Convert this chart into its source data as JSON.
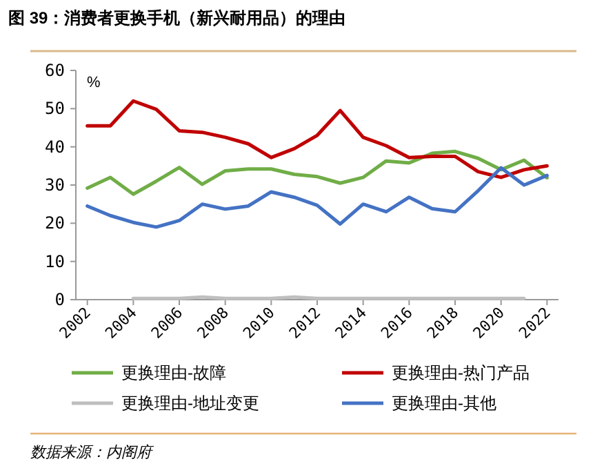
{
  "chart_data": {
    "type": "line",
    "title": "图 39：消费者更换手机（新兴耐用品）的理由",
    "ylabel": "%",
    "categories": [
      "2002",
      null,
      "2004",
      null,
      "2006",
      null,
      "2008",
      null,
      "2010",
      null,
      "2012",
      null,
      "2014",
      null,
      "2016",
      null,
      "2018",
      null,
      "2020",
      null,
      "2022"
    ],
    "series": [
      {
        "name": "更换理由-故障",
        "color": "#70ad47",
        "values": [
          29.2,
          32,
          27.6,
          31,
          34.6,
          30.2,
          33.7,
          34.2,
          34.2,
          32.8,
          32.2,
          30.5,
          32,
          36.3,
          35.8,
          38.3,
          38.8,
          37,
          34,
          36.5,
          31.9
        ]
      },
      {
        "name": "更换理由-热门产品",
        "color": "#c00000",
        "values": [
          45.5,
          45.5,
          52,
          49.8,
          44.2,
          43.8,
          42.5,
          40.8,
          37.2,
          39.5,
          43,
          49.5,
          42.5,
          40.3,
          37.2,
          37.5,
          37.5,
          33.5,
          32,
          34,
          35
        ]
      },
      {
        "name": "更换理由-地址变更",
        "color": "#bfbfbf",
        "values": [
          null,
          null,
          0.3,
          0.3,
          0.3,
          0.7,
          0.3,
          0.3,
          0.3,
          0.7,
          0.3,
          0.3,
          0.3,
          0.3,
          0.3,
          0.3,
          0.3,
          0.3,
          0.3,
          0.3,
          null
        ]
      },
      {
        "name": "更换理由-其他",
        "color": "#4472c4",
        "values": [
          24.5,
          22,
          20.2,
          19,
          20.7,
          25,
          23.7,
          24.5,
          28.2,
          26.8,
          24.7,
          19.8,
          25,
          23,
          26.8,
          23.8,
          23,
          28.5,
          34.5,
          30,
          32.5
        ]
      }
    ],
    "ylim": [
      0,
      60
    ],
    "yticks": [
      0,
      10,
      20,
      30,
      40,
      50,
      60
    ],
    "grid": false,
    "legend": "bottom",
    "annotations": [
      "数据来源：内阁府"
    ]
  }
}
